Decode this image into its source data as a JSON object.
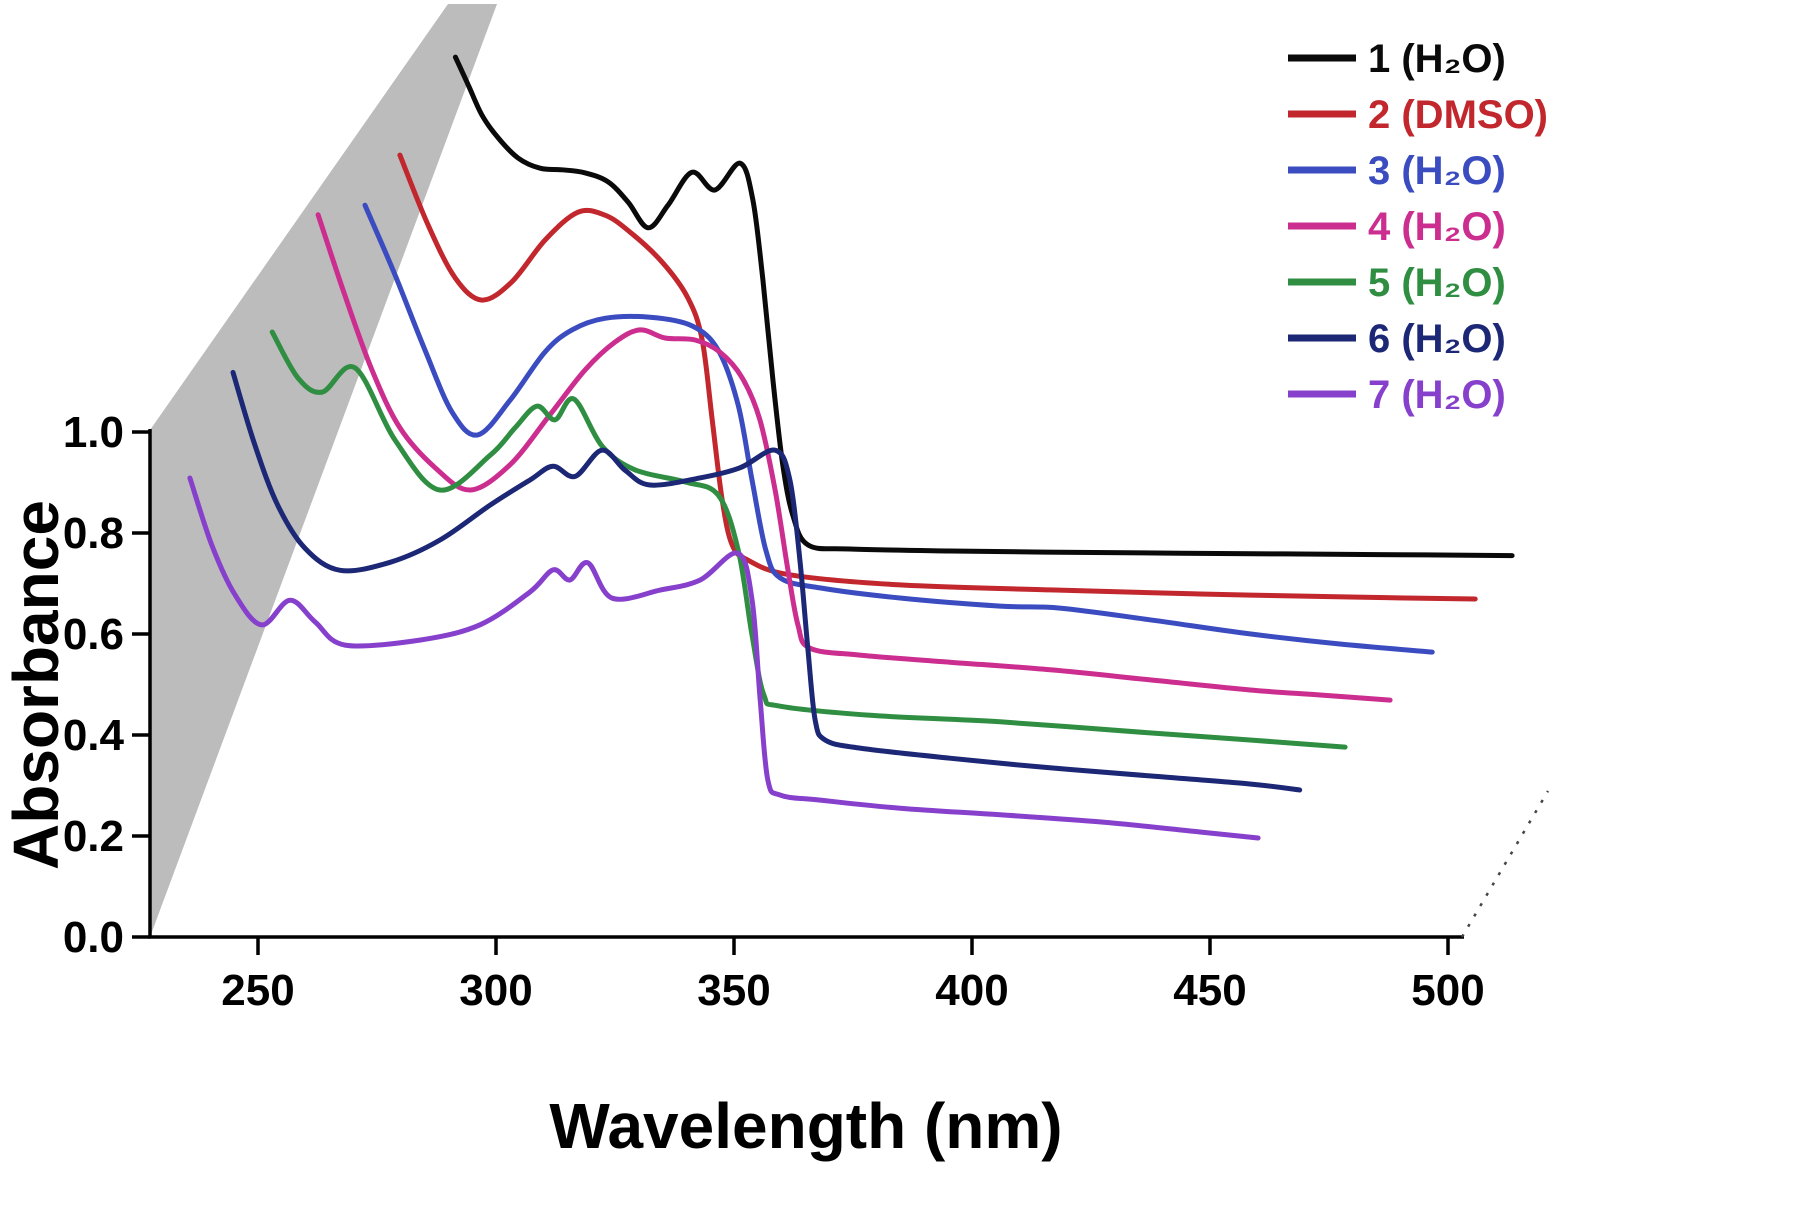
{
  "chart_data": {
    "type": "line",
    "variant": "3d-waterfall-spectra",
    "title": "",
    "xlabel": "Wavelength (nm)",
    "ylabel": "Absorbance",
    "x_ticks": [
      250,
      300,
      350,
      400,
      450,
      500
    ],
    "x_tick_labels": [
      "250",
      "300",
      "350",
      "400",
      "450",
      "500"
    ],
    "y_ticks": [
      0.0,
      0.2,
      0.4,
      0.6,
      0.8,
      1.0
    ],
    "y_tick_labels": [
      "0.0",
      "0.2",
      "0.4",
      "0.6",
      "0.8",
      "1.0"
    ],
    "x_axis_range_nm": [
      227,
      503
    ],
    "y_axis_range": [
      0,
      1.0
    ],
    "grid": false,
    "legend_position": "upper-right",
    "background_wall": {
      "color": "#bcbcbc",
      "description": "gray shaded plane behind short-wavelength region of stacked spectra"
    },
    "waterfall": {
      "series_count": 7,
      "front_series": "7",
      "back_series": "1",
      "offset_per_series": {
        "x_nm_equivalent": 9.2,
        "y_absorbance_equivalent": 0.095
      }
    },
    "series": [
      {
        "id": "1",
        "legend_label": "1 (H₂O)",
        "solvent": "H₂O",
        "color": "#0a0a0a",
        "depth_index": 6,
        "points": [
          [
            236.0,
            1.172
          ],
          [
            238.7,
            1.117
          ],
          [
            241.6,
            1.057
          ],
          [
            245.0,
            1.012
          ],
          [
            249.2,
            0.972
          ],
          [
            253.8,
            0.952
          ],
          [
            258.4,
            0.949
          ],
          [
            263.2,
            0.943
          ],
          [
            268.1,
            0.925
          ],
          [
            272.3,
            0.885
          ],
          [
            276.5,
            0.834
          ],
          [
            280.7,
            0.879
          ],
          [
            285.7,
            0.944
          ],
          [
            290.5,
            0.909
          ],
          [
            295.8,
            0.962
          ],
          [
            298.5,
            0.889
          ],
          [
            300.6,
            0.731
          ],
          [
            302.7,
            0.533
          ],
          [
            304.8,
            0.364
          ],
          [
            306.9,
            0.265
          ],
          [
            310.1,
            0.206
          ],
          [
            318.9,
            0.198
          ],
          [
            340.0,
            0.194
          ],
          [
            370.0,
            0.191
          ],
          [
            400.0,
            0.189
          ],
          [
            430.0,
            0.187
          ],
          [
            458.0,
            0.185
          ]
        ]
      },
      {
        "id": "2",
        "legend_label": "2 (DMSO)",
        "solvent": "DMSO",
        "color": "#c1272d",
        "depth_index": 5,
        "points": [
          [
            233.6,
            1.073
          ],
          [
            239.5,
            0.935
          ],
          [
            245.2,
            0.83
          ],
          [
            250.8,
            0.786
          ],
          [
            257.1,
            0.822
          ],
          [
            264.1,
            0.905
          ],
          [
            271.0,
            0.96
          ],
          [
            276.7,
            0.954
          ],
          [
            281.9,
            0.921
          ],
          [
            288.7,
            0.861
          ],
          [
            294.1,
            0.79
          ],
          [
            297.1,
            0.707
          ],
          [
            299.2,
            0.549
          ],
          [
            301.3,
            0.39
          ],
          [
            303.4,
            0.301
          ],
          [
            306.7,
            0.271
          ],
          [
            315.5,
            0.242
          ],
          [
            338.7,
            0.222
          ],
          [
            370.2,
            0.212
          ],
          [
            401.7,
            0.204
          ],
          [
            433.2,
            0.198
          ],
          [
            459.5,
            0.194
          ]
        ]
      },
      {
        "id": "3",
        "legend_label": "3 (H₂O)",
        "solvent": "H₂O",
        "color": "#3b4cc0",
        "depth_index": 4,
        "points": [
          [
            235.5,
            1.069
          ],
          [
            241.8,
            0.931
          ],
          [
            248.1,
            0.782
          ],
          [
            253.8,
            0.659
          ],
          [
            259.2,
            0.614
          ],
          [
            266.0,
            0.683
          ],
          [
            273.3,
            0.778
          ],
          [
            279.0,
            0.822
          ],
          [
            285.9,
            0.845
          ],
          [
            295.4,
            0.847
          ],
          [
            304.2,
            0.83
          ],
          [
            309.7,
            0.782
          ],
          [
            313.9,
            0.673
          ],
          [
            316.8,
            0.525
          ],
          [
            319.7,
            0.386
          ],
          [
            322.7,
            0.331
          ],
          [
            331.1,
            0.311
          ],
          [
            347.9,
            0.291
          ],
          [
            368.9,
            0.275
          ],
          [
            381.5,
            0.271
          ],
          [
            400.4,
            0.248
          ],
          [
            421.4,
            0.22
          ],
          [
            440.3,
            0.2
          ],
          [
            459.7,
            0.184
          ]
        ]
      },
      {
        "id": "4",
        "legend_label": "4 (H₂O)",
        "solvent": "H₂O",
        "color": "#cc2e8f",
        "depth_index": 3,
        "points": [
          [
            234.9,
            1.145
          ],
          [
            240.5,
            0.986
          ],
          [
            246.2,
            0.838
          ],
          [
            252.1,
            0.723
          ],
          [
            259.5,
            0.644
          ],
          [
            266.8,
            0.6
          ],
          [
            275.2,
            0.65
          ],
          [
            283.6,
            0.749
          ],
          [
            291.0,
            0.838
          ],
          [
            297.3,
            0.893
          ],
          [
            302.5,
            0.917
          ],
          [
            307.8,
            0.901
          ],
          [
            314.1,
            0.897
          ],
          [
            319.3,
            0.873
          ],
          [
            324.0,
            0.822
          ],
          [
            327.7,
            0.739
          ],
          [
            330.9,
            0.6
          ],
          [
            333.6,
            0.442
          ],
          [
            335.7,
            0.333
          ],
          [
            338.2,
            0.287
          ],
          [
            348.7,
            0.273
          ],
          [
            367.6,
            0.259
          ],
          [
            388.7,
            0.244
          ],
          [
            409.7,
            0.224
          ],
          [
            430.7,
            0.204
          ],
          [
            445.4,
            0.194
          ],
          [
            460.1,
            0.184
          ]
        ]
      },
      {
        "id": "5",
        "legend_label": "5 (H₂O)",
        "solvent": "H₂O",
        "color": "#2f8e41",
        "depth_index": 2,
        "points": [
          [
            234.5,
            1.008
          ],
          [
            239.9,
            0.917
          ],
          [
            245.0,
            0.889
          ],
          [
            251.9,
            0.937
          ],
          [
            260.3,
            0.794
          ],
          [
            269.7,
            0.695
          ],
          [
            280.3,
            0.764
          ],
          [
            285.5,
            0.818
          ],
          [
            290.1,
            0.861
          ],
          [
            293.9,
            0.834
          ],
          [
            297.9,
            0.875
          ],
          [
            303.8,
            0.782
          ],
          [
            310.7,
            0.735
          ],
          [
            321.2,
            0.711
          ],
          [
            328.2,
            0.685
          ],
          [
            332.4,
            0.576
          ],
          [
            335.3,
            0.408
          ],
          [
            337.8,
            0.289
          ],
          [
            341.2,
            0.267
          ],
          [
            360.1,
            0.249
          ],
          [
            387.4,
            0.236
          ],
          [
            418.9,
            0.214
          ],
          [
            439.9,
            0.2
          ],
          [
            459.9,
            0.186
          ]
        ]
      },
      {
        "id": "6",
        "legend_label": "6 (H₂O)",
        "solvent": "H₂O",
        "color": "#1c2775",
        "depth_index": 1,
        "points": [
          [
            235.5,
            1.023
          ],
          [
            240.1,
            0.879
          ],
          [
            244.9,
            0.76
          ],
          [
            250.6,
            0.675
          ],
          [
            258.0,
            0.631
          ],
          [
            268.5,
            0.647
          ],
          [
            279.0,
            0.691
          ],
          [
            289.5,
            0.76
          ],
          [
            297.9,
            0.81
          ],
          [
            302.7,
            0.837
          ],
          [
            307.4,
            0.817
          ],
          [
            313.0,
            0.869
          ],
          [
            317.9,
            0.829
          ],
          [
            323.1,
            0.8
          ],
          [
            333.6,
            0.814
          ],
          [
            342.0,
            0.834
          ],
          [
            349.4,
            0.869
          ],
          [
            352.5,
            0.81
          ],
          [
            354.6,
            0.651
          ],
          [
            356.3,
            0.473
          ],
          [
            357.8,
            0.335
          ],
          [
            359.9,
            0.295
          ],
          [
            367.2,
            0.279
          ],
          [
            386.1,
            0.259
          ],
          [
            407.1,
            0.24
          ],
          [
            428.1,
            0.224
          ],
          [
            449.1,
            0.208
          ],
          [
            459.6,
            0.196
          ]
        ]
      },
      {
        "id": "7",
        "legend_label": "7 (H₂O)",
        "solvent": "H₂O",
        "color": "#8640cc",
        "depth_index": 0,
        "points": [
          [
            235.7,
            0.909
          ],
          [
            240.3,
            0.776
          ],
          [
            245.2,
            0.677
          ],
          [
            250.8,
            0.618
          ],
          [
            256.7,
            0.667
          ],
          [
            262.0,
            0.624
          ],
          [
            268.3,
            0.578
          ],
          [
            284.0,
            0.588
          ],
          [
            296.6,
            0.618
          ],
          [
            307.1,
            0.683
          ],
          [
            312.0,
            0.727
          ],
          [
            315.5,
            0.707
          ],
          [
            319.3,
            0.741
          ],
          [
            324.4,
            0.671
          ],
          [
            334.5,
            0.687
          ],
          [
            342.9,
            0.707
          ],
          [
            350.8,
            0.76
          ],
          [
            353.8,
            0.667
          ],
          [
            355.5,
            0.469
          ],
          [
            357.1,
            0.311
          ],
          [
            359.7,
            0.281
          ],
          [
            368.1,
            0.271
          ],
          [
            384.9,
            0.255
          ],
          [
            405.9,
            0.242
          ],
          [
            426.9,
            0.228
          ],
          [
            447.9,
            0.208
          ],
          [
            460.1,
            0.196
          ]
        ]
      }
    ]
  }
}
